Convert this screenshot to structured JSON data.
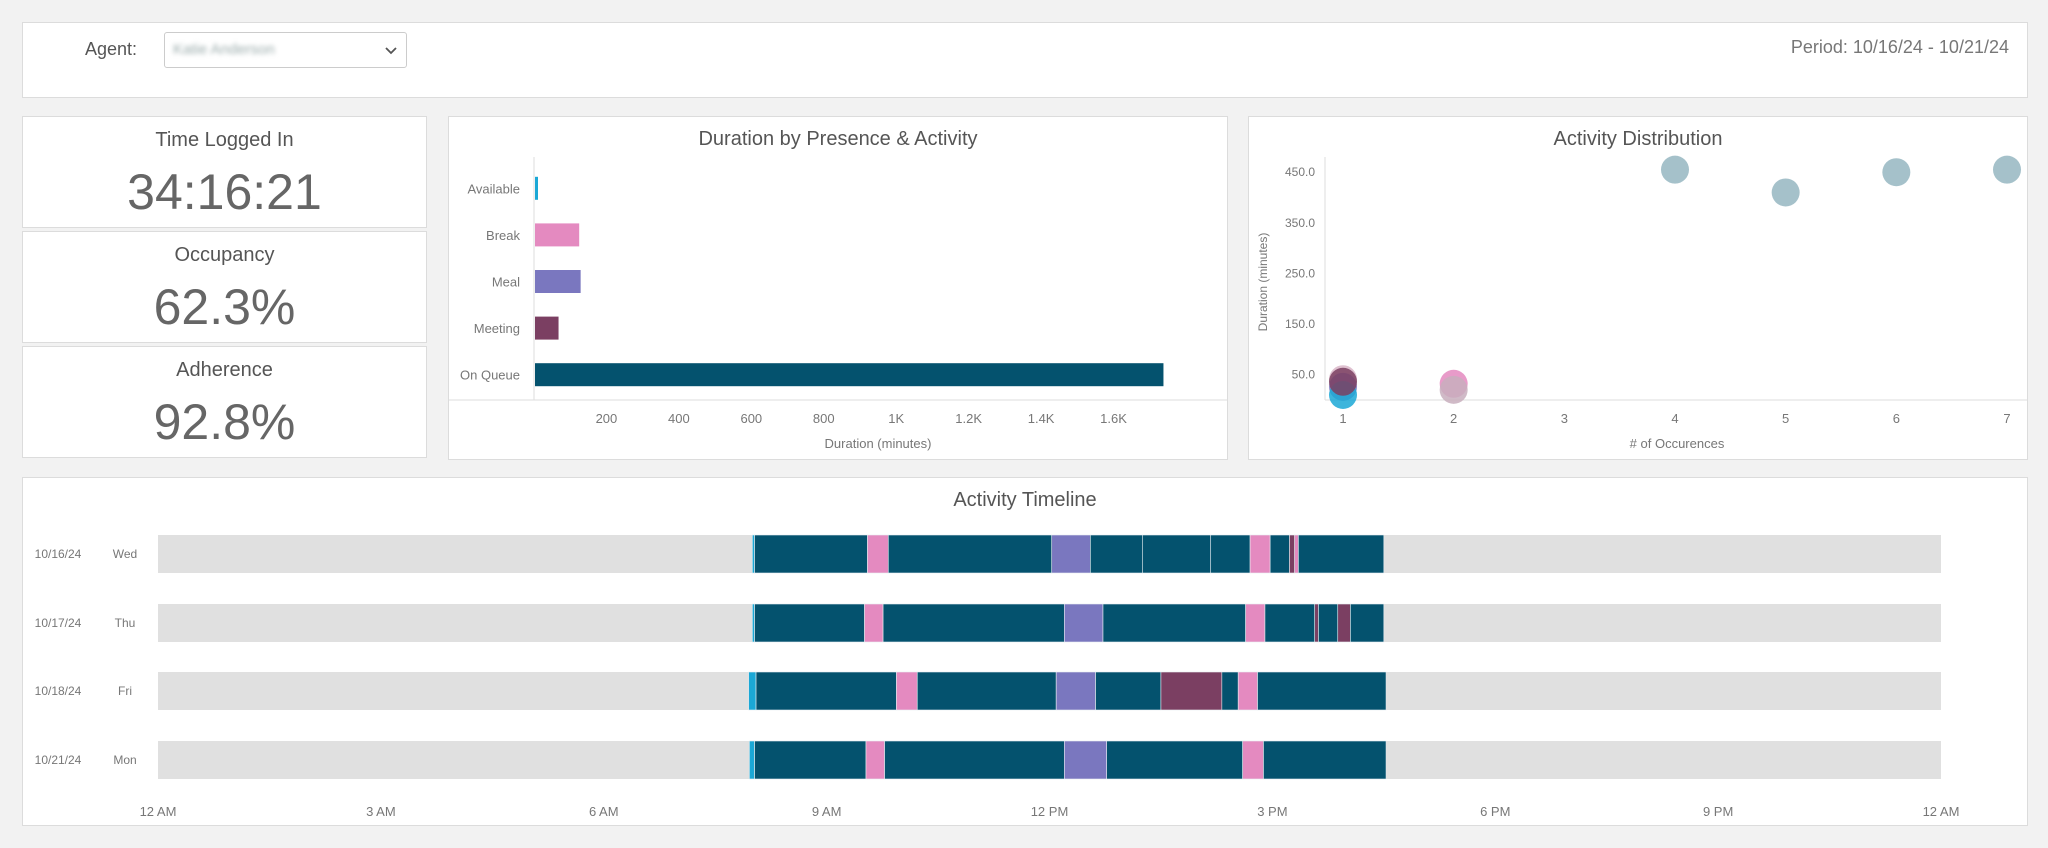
{
  "filter": {
    "agent_label": "Agent:",
    "agent_value": "Katie Anderson",
    "period": "Period: 10/16/24 - 10/21/24"
  },
  "stats": [
    {
      "title": "Time Logged In",
      "value": "34:16:21"
    },
    {
      "title": "Occupancy",
      "value": "62.3%"
    },
    {
      "title": "Adherence",
      "value": "92.8%"
    }
  ],
  "colors": {
    "available": "#1ba8d6",
    "break": "#e48ac0",
    "meal": "#7a77bf",
    "meeting": "#7b3f62",
    "on_queue": "#04526e",
    "offline": "#e0e0e0",
    "scatter": "#95b6c1"
  },
  "chart_data": [
    {
      "type": "bar",
      "orientation": "horizontal",
      "title": "Duration by Presence & Activity",
      "categories": [
        "Available",
        "Break",
        "Meal",
        "Meeting",
        "On Queue"
      ],
      "values": [
        8,
        122,
        126,
        65,
        1735
      ],
      "xlabel": "Duration (minutes)",
      "xlim": [
        0,
        1800
      ],
      "xticks": [
        200,
        400,
        600,
        800,
        1000,
        1200,
        1400,
        1600
      ],
      "xtick_labels": [
        "200",
        "400",
        "600",
        "800",
        "1K",
        "1.2K",
        "1.4K",
        "1.6K"
      ]
    },
    {
      "type": "scatter",
      "title": "Activity Distribution",
      "xlabel": "# of Occurences",
      "ylabel": "Duration (minutes)",
      "xlim": [
        1,
        7
      ],
      "ylim": [
        0,
        480
      ],
      "xticks": [
        1,
        2,
        3,
        4,
        5,
        6,
        7
      ],
      "yticks": [
        50,
        150,
        250,
        350,
        450
      ],
      "ytick_labels": [
        "50.0",
        "150.0",
        "250.0",
        "350.0",
        "450.0"
      ],
      "points": [
        {
          "x": 1,
          "y": 41,
          "color": "#d9b6c8"
        },
        {
          "x": 1,
          "y": 26,
          "color": "#7a77bf"
        },
        {
          "x": 1,
          "y": 10,
          "color": "#1ba8d6"
        },
        {
          "x": 1,
          "y": 36,
          "color": "#7b3f62"
        },
        {
          "x": 2,
          "y": 32,
          "color": "#e48ac0"
        },
        {
          "x": 2,
          "y": 20,
          "color": "#c8aebd"
        },
        {
          "x": 4,
          "y": 455,
          "color": "#95b6c1"
        },
        {
          "x": 5,
          "y": 410,
          "color": "#95b6c1"
        },
        {
          "x": 6,
          "y": 450,
          "color": "#95b6c1"
        },
        {
          "x": 7,
          "y": 455,
          "color": "#95b6c1"
        }
      ]
    },
    {
      "type": "timeline",
      "title": "Activity Timeline",
      "x_range_hours": [
        0,
        24
      ],
      "xticks": [
        "12 AM",
        "3 AM",
        "6 AM",
        "9 AM",
        "12 PM",
        "3 PM",
        "6 PM",
        "9 PM",
        "12 AM"
      ],
      "rows": [
        {
          "date": "10/16/24",
          "day": "Wed",
          "segments": [
            [
              "available",
              8.0,
              8.03
            ],
            [
              "on_queue",
              8.03,
              9.55
            ],
            [
              "break",
              9.55,
              9.83
            ],
            [
              "on_queue",
              9.83,
              12.03
            ],
            [
              "meal",
              12.03,
              12.55
            ],
            [
              "on_queue",
              12.55,
              13.25
            ],
            [
              "on_queue",
              13.25,
              14.17
            ],
            [
              "on_queue",
              14.17,
              14.7
            ],
            [
              "break",
              14.7,
              14.97
            ],
            [
              "on_queue",
              14.97,
              15.23
            ],
            [
              "meeting",
              15.23,
              15.3
            ],
            [
              "break",
              15.3,
              15.35
            ],
            [
              "on_queue",
              15.35,
              16.5
            ]
          ]
        },
        {
          "date": "10/17/24",
          "day": "Thu",
          "segments": [
            [
              "available",
              8.0,
              8.03
            ],
            [
              "on_queue",
              8.03,
              9.51
            ],
            [
              "break",
              9.51,
              9.76
            ],
            [
              "on_queue",
              9.76,
              12.2
            ],
            [
              "meal",
              12.2,
              12.72
            ],
            [
              "on_queue",
              12.72,
              14.64
            ],
            [
              "break",
              14.64,
              14.9
            ],
            [
              "on_queue",
              14.9,
              15.57
            ],
            [
              "meeting",
              15.57,
              15.62
            ],
            [
              "on_queue",
              15.62,
              15.88
            ],
            [
              "meeting",
              15.88,
              16.05
            ],
            [
              "on_queue",
              16.05,
              16.5
            ]
          ]
        },
        {
          "date": "10/18/24",
          "day": "Fri",
          "segments": [
            [
              "available",
              7.95,
              8.05
            ],
            [
              "on_queue",
              8.05,
              9.94
            ],
            [
              "break",
              9.94,
              10.22
            ],
            [
              "on_queue",
              10.22,
              12.09
            ],
            [
              "meal",
              12.09,
              12.62
            ],
            [
              "on_queue",
              12.62,
              13.5
            ],
            [
              "meeting",
              13.5,
              14.32
            ],
            [
              "on_queue",
              14.32,
              14.54
            ],
            [
              "break",
              14.54,
              14.8
            ],
            [
              "on_queue",
              14.8,
              16.53
            ]
          ]
        },
        {
          "date": "10/21/24",
          "day": "Mon",
          "segments": [
            [
              "available",
              7.96,
              8.03
            ],
            [
              "on_queue",
              8.03,
              9.53
            ],
            [
              "break",
              9.53,
              9.78
            ],
            [
              "on_queue",
              9.78,
              12.2
            ],
            [
              "meal",
              12.2,
              12.77
            ],
            [
              "on_queue",
              12.77,
              14.6
            ],
            [
              "break",
              14.6,
              14.88
            ],
            [
              "on_queue",
              14.88,
              16.53
            ]
          ]
        }
      ]
    }
  ]
}
